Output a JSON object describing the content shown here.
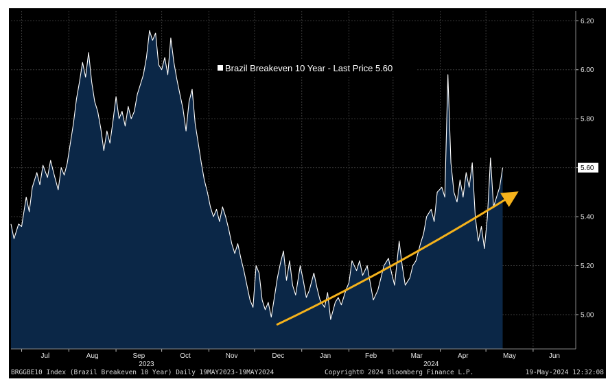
{
  "chart_data": {
    "type": "area",
    "title": "Brazil Breakeven 10 Year - Last Price 5.60",
    "legend": {
      "label": "Brazil Breakeven 10 Year - Last Price 5.60",
      "placement": "top-center"
    },
    "last_price": "5.60",
    "ylim": [
      4.86,
      6.24
    ],
    "y_ticks": [
      "5.00",
      "5.20",
      "5.40",
      "5.60",
      "5.80",
      "6.00",
      "6.20"
    ],
    "x_range": [
      "2023-06-24",
      "2024-06-29"
    ],
    "x_ticks": [
      {
        "date": "2023-07-01",
        "label": "Jul"
      },
      {
        "date": "2023-08-01",
        "label": "Aug"
      },
      {
        "date": "2023-09-01",
        "label": "Sep"
      },
      {
        "date": "2023-10-01",
        "label": "Oct"
      },
      {
        "date": "2023-11-01",
        "label": "Nov"
      },
      {
        "date": "2023-12-01",
        "label": "Dec"
      },
      {
        "date": "2024-01-01",
        "label": "Jan"
      },
      {
        "date": "2024-02-01",
        "label": "Feb"
      },
      {
        "date": "2024-03-01",
        "label": "Mar"
      },
      {
        "date": "2024-04-01",
        "label": "Apr"
      },
      {
        "date": "2024-05-01",
        "label": "May"
      },
      {
        "date": "2024-06-01",
        "label": "Jun"
      }
    ],
    "year_labels": [
      {
        "date": "2023-09-21",
        "label": "2023"
      },
      {
        "date": "2024-03-26",
        "label": "2024"
      }
    ],
    "grid": true,
    "colors": {
      "background": "#000000",
      "fill": "#0b2747",
      "line": "#ffffff",
      "grid": "#3a3a3a",
      "trend": "#f5b21b",
      "text": "#e6e6e6"
    },
    "series": [
      {
        "values": [
          [
            "2023-06-24",
            5.37
          ],
          [
            "2023-06-26",
            5.31
          ],
          [
            "2023-06-29",
            5.37
          ],
          [
            "2023-07-01",
            5.36
          ],
          [
            "2023-07-04",
            5.48
          ],
          [
            "2023-07-06",
            5.42
          ],
          [
            "2023-07-08",
            5.52
          ],
          [
            "2023-07-11",
            5.58
          ],
          [
            "2023-07-13",
            5.53
          ],
          [
            "2023-07-15",
            5.61
          ],
          [
            "2023-07-18",
            5.56
          ],
          [
            "2023-07-20",
            5.63
          ],
          [
            "2023-07-22",
            5.58
          ],
          [
            "2023-07-25",
            5.51
          ],
          [
            "2023-07-27",
            5.6
          ],
          [
            "2023-07-29",
            5.57
          ],
          [
            "2023-07-31",
            5.62
          ],
          [
            "2023-08-02",
            5.7
          ],
          [
            "2023-08-04",
            5.78
          ],
          [
            "2023-08-06",
            5.88
          ],
          [
            "2023-08-08",
            5.95
          ],
          [
            "2023-08-10",
            6.03
          ],
          [
            "2023-08-12",
            5.97
          ],
          [
            "2023-08-14",
            6.07
          ],
          [
            "2023-08-16",
            5.95
          ],
          [
            "2023-08-18",
            5.87
          ],
          [
            "2023-08-20",
            5.83
          ],
          [
            "2023-08-22",
            5.76
          ],
          [
            "2023-08-24",
            5.67
          ],
          [
            "2023-08-26",
            5.75
          ],
          [
            "2023-08-28",
            5.7
          ],
          [
            "2023-08-30",
            5.79
          ],
          [
            "2023-09-01",
            5.89
          ],
          [
            "2023-09-03",
            5.8
          ],
          [
            "2023-09-05",
            5.83
          ],
          [
            "2023-09-07",
            5.77
          ],
          [
            "2023-09-09",
            5.85
          ],
          [
            "2023-09-11",
            5.8
          ],
          [
            "2023-09-13",
            5.83
          ],
          [
            "2023-09-15",
            5.9
          ],
          [
            "2023-09-17",
            5.94
          ],
          [
            "2023-09-19",
            5.98
          ],
          [
            "2023-09-21",
            6.05
          ],
          [
            "2023-09-23",
            6.16
          ],
          [
            "2023-09-25",
            6.12
          ],
          [
            "2023-09-27",
            6.15
          ],
          [
            "2023-09-29",
            6.02
          ],
          [
            "2023-10-01",
            6.0
          ],
          [
            "2023-10-03",
            6.05
          ],
          [
            "2023-10-05",
            5.98
          ],
          [
            "2023-10-07",
            6.13
          ],
          [
            "2023-10-09",
            6.03
          ],
          [
            "2023-10-11",
            5.96
          ],
          [
            "2023-10-13",
            5.9
          ],
          [
            "2023-10-15",
            5.84
          ],
          [
            "2023-10-17",
            5.75
          ],
          [
            "2023-10-19",
            5.87
          ],
          [
            "2023-10-21",
            5.92
          ],
          [
            "2023-10-23",
            5.78
          ],
          [
            "2023-10-25",
            5.7
          ],
          [
            "2023-10-27",
            5.62
          ],
          [
            "2023-10-29",
            5.55
          ],
          [
            "2023-10-31",
            5.5
          ],
          [
            "2023-11-02",
            5.44
          ],
          [
            "2023-11-04",
            5.4
          ],
          [
            "2023-11-06",
            5.43
          ],
          [
            "2023-11-08",
            5.38
          ],
          [
            "2023-11-10",
            5.44
          ],
          [
            "2023-11-12",
            5.4
          ],
          [
            "2023-11-14",
            5.35
          ],
          [
            "2023-11-16",
            5.29
          ],
          [
            "2023-11-18",
            5.25
          ],
          [
            "2023-11-20",
            5.29
          ],
          [
            "2023-11-22",
            5.23
          ],
          [
            "2023-11-24",
            5.18
          ],
          [
            "2023-11-26",
            5.12
          ],
          [
            "2023-11-28",
            5.06
          ],
          [
            "2023-11-30",
            5.03
          ],
          [
            "2023-12-02",
            5.2
          ],
          [
            "2023-12-04",
            5.17
          ],
          [
            "2023-12-06",
            5.06
          ],
          [
            "2023-12-08",
            5.02
          ],
          [
            "2023-12-10",
            5.05
          ],
          [
            "2023-12-12",
            4.99
          ],
          [
            "2023-12-14",
            5.07
          ],
          [
            "2023-12-16",
            5.15
          ],
          [
            "2023-12-18",
            5.21
          ],
          [
            "2023-12-20",
            5.26
          ],
          [
            "2023-12-22",
            5.14
          ],
          [
            "2023-12-24",
            5.22
          ],
          [
            "2023-12-26",
            5.12
          ],
          [
            "2023-12-28",
            5.08
          ],
          [
            "2023-12-31",
            5.2
          ],
          [
            "2024-01-02",
            5.14
          ],
          [
            "2024-01-04",
            5.07
          ],
          [
            "2024-01-06",
            5.1
          ],
          [
            "2024-01-09",
            5.17
          ],
          [
            "2024-01-11",
            5.11
          ],
          [
            "2024-01-13",
            5.06
          ],
          [
            "2024-01-16",
            5.03
          ],
          [
            "2024-01-18",
            5.09
          ],
          [
            "2024-01-20",
            4.98
          ],
          [
            "2024-01-23",
            5.05
          ],
          [
            "2024-01-25",
            5.07
          ],
          [
            "2024-01-27",
            5.04
          ],
          [
            "2024-01-30",
            5.1
          ],
          [
            "2024-02-01",
            5.13
          ],
          [
            "2024-02-03",
            5.22
          ],
          [
            "2024-02-06",
            5.18
          ],
          [
            "2024-02-08",
            5.22
          ],
          [
            "2024-02-10",
            5.16
          ],
          [
            "2024-02-13",
            5.2
          ],
          [
            "2024-02-15",
            5.13
          ],
          [
            "2024-02-17",
            5.06
          ],
          [
            "2024-02-20",
            5.1
          ],
          [
            "2024-02-22",
            5.15
          ],
          [
            "2024-02-24",
            5.2
          ],
          [
            "2024-02-27",
            5.23
          ],
          [
            "2024-02-29",
            5.17
          ],
          [
            "2024-03-02",
            5.12
          ],
          [
            "2024-03-05",
            5.3
          ],
          [
            "2024-03-07",
            5.2
          ],
          [
            "2024-03-09",
            5.12
          ],
          [
            "2024-03-12",
            5.15
          ],
          [
            "2024-03-14",
            5.2
          ],
          [
            "2024-03-16",
            5.22
          ],
          [
            "2024-03-19",
            5.29
          ],
          [
            "2024-03-21",
            5.33
          ],
          [
            "2024-03-23",
            5.4
          ],
          [
            "2024-03-26",
            5.43
          ],
          [
            "2024-03-28",
            5.38
          ],
          [
            "2024-03-30",
            5.5
          ],
          [
            "2024-04-02",
            5.52
          ],
          [
            "2024-04-04",
            5.48
          ],
          [
            "2024-04-06",
            5.98
          ],
          [
            "2024-04-08",
            5.62
          ],
          [
            "2024-04-10",
            5.5
          ],
          [
            "2024-04-12",
            5.46
          ],
          [
            "2024-04-14",
            5.55
          ],
          [
            "2024-04-16",
            5.48
          ],
          [
            "2024-04-18",
            5.58
          ],
          [
            "2024-04-20",
            5.52
          ],
          [
            "2024-04-22",
            5.62
          ],
          [
            "2024-04-24",
            5.4
          ],
          [
            "2024-04-26",
            5.3
          ],
          [
            "2024-04-28",
            5.36
          ],
          [
            "2024-04-30",
            5.27
          ],
          [
            "2024-05-02",
            5.4
          ],
          [
            "2024-05-04",
            5.64
          ],
          [
            "2024-05-06",
            5.44
          ],
          [
            "2024-05-08",
            5.48
          ],
          [
            "2024-05-10",
            5.52
          ],
          [
            "2024-05-12",
            5.6
          ]
        ]
      }
    ],
    "annotations": [
      {
        "type": "trend-arrow",
        "from": [
          "2023-12-16",
          4.96
        ],
        "to": [
          "2024-05-19",
          5.49
        ]
      }
    ]
  },
  "footer": {
    "left": "BRGGBE10 Index (Brazil Breakeven 10 Year)  Daily 19MAY2023-19MAY2024",
    "center": "Copyright© 2024 Bloomberg Finance L.P.",
    "right": "19-May-2024 12:32:08"
  }
}
